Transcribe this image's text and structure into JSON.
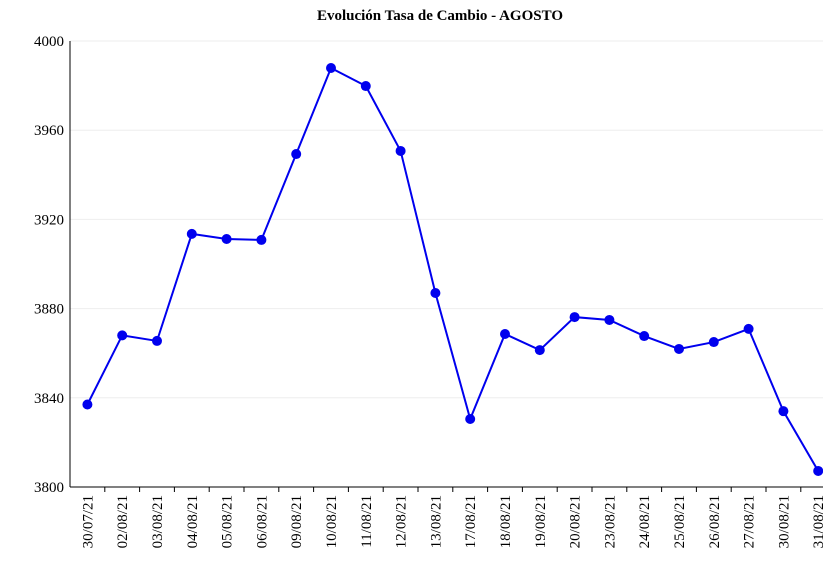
{
  "chart_data": {
    "type": "line",
    "title": "Evolución Tasa de Cambio - AGOSTO",
    "categories": [
      "30/07/21",
      "02/08/21",
      "03/08/21",
      "04/08/21",
      "05/08/21",
      "06/08/21",
      "09/08/21",
      "10/08/21",
      "11/08/21",
      "12/08/21",
      "13/08/21",
      "17/08/21",
      "18/08/21",
      "19/08/21",
      "20/08/21",
      "23/08/21",
      "24/08/21",
      "25/08/21",
      "26/08/21",
      "27/08/21",
      "30/08/21",
      "31/08/21"
    ],
    "series": [
      {
        "name": "Tasa de Cambio",
        "color": "#0000ee",
        "values": [
          3837,
          3868,
          3865.5,
          3913.5,
          3911.2,
          3910.8,
          3949.3,
          3987.9,
          3979.8,
          3950.7,
          3887,
          3830.5,
          3868.6,
          3861.4,
          3876.2,
          3874.9,
          3867.7,
          3861.9,
          3865,
          3870.9,
          3834,
          3807.2
        ]
      }
    ],
    "ylim": [
      3800,
      4000
    ],
    "yticks": [
      3800,
      3840,
      3880,
      3920,
      3960,
      4000
    ],
    "grid": true
  }
}
